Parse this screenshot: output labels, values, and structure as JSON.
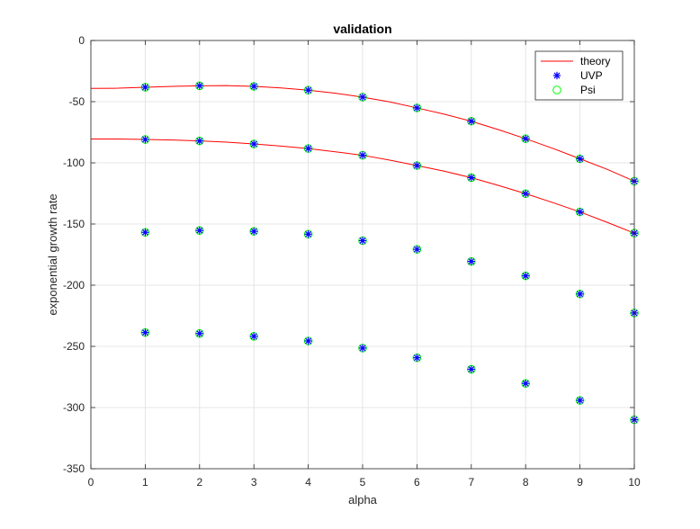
{
  "chart_data": {
    "type": "line",
    "title": "validation",
    "xlabel": "alpha",
    "ylabel": "exponential growth rate",
    "xlim": [
      0,
      10
    ],
    "ylim": [
      -350,
      0
    ],
    "xticks": [
      0,
      1,
      2,
      3,
      4,
      5,
      6,
      7,
      8,
      9,
      10
    ],
    "yticks": [
      0,
      -50,
      -100,
      -150,
      -200,
      -250,
      -300,
      -350
    ],
    "grid": true,
    "legend_position": "top-right",
    "legend": [
      {
        "name": "theory",
        "style": "line",
        "color": "#ff0000"
      },
      {
        "name": "UVP",
        "style": "asterisk",
        "color": "#0000ff"
      },
      {
        "name": "Psi",
        "style": "circle",
        "color": "#00ff00"
      }
    ],
    "series": [
      {
        "name": "theory",
        "color": "#ff0000",
        "style": "line",
        "curves": [
          {
            "x": [
              0,
              0.5,
              1,
              1.5,
              2,
              2.5,
              3,
              3.5,
              4,
              4.5,
              5,
              5.5,
              6,
              6.5,
              7,
              7.5,
              8,
              8.5,
              9,
              9.5,
              10
            ],
            "y": [
              -39.2,
              -39.0,
              -38.2,
              -37.5,
              -37.0,
              -36.9,
              -37.5,
              -38.8,
              -40.6,
              -43.1,
              -46.3,
              -50.2,
              -55.1,
              -60.2,
              -66.0,
              -72.9,
              -80.3,
              -88.2,
              -96.7,
              -105.3,
              -115.0
            ]
          },
          {
            "x": [
              0,
              0.5,
              1,
              1.5,
              2,
              2.5,
              3,
              3.5,
              4,
              4.5,
              5,
              5.5,
              6,
              6.5,
              7,
              7.5,
              8,
              8.5,
              9,
              9.5,
              10
            ],
            "y": [
              -80.5,
              -80.5,
              -80.9,
              -81.3,
              -82.1,
              -83.1,
              -84.6,
              -86.3,
              -88.3,
              -91.0,
              -93.8,
              -97.8,
              -102.2,
              -106.8,
              -112.1,
              -118.5,
              -125.2,
              -132.5,
              -140.1,
              -148.6,
              -157.5
            ]
          }
        ]
      },
      {
        "name": "UVP",
        "color": "#0000ff",
        "style": "asterisk",
        "x": [
          1,
          2,
          3,
          4,
          5,
          6,
          7,
          8,
          9,
          10
        ],
        "groups": [
          [
            -38.2,
            -37.0,
            -37.5,
            -40.6,
            -46.3,
            -55.1,
            -66.0,
            -80.3,
            -96.7,
            -115.0
          ],
          [
            -80.9,
            -82.1,
            -84.6,
            -88.3,
            -93.8,
            -102.2,
            -112.1,
            -125.2,
            -140.1,
            -157.5
          ],
          [
            -156.8,
            -155.3,
            -156.0,
            -158.3,
            -163.6,
            -170.7,
            -180.6,
            -192.4,
            -207.2,
            -222.7
          ],
          [
            -238.7,
            -239.5,
            -241.8,
            -245.6,
            -251.4,
            -259.3,
            -268.7,
            -280.3,
            -294.2,
            -310.0
          ]
        ]
      },
      {
        "name": "Psi",
        "color": "#00ff00",
        "style": "circle",
        "x": [
          1,
          2,
          3,
          4,
          5,
          6,
          7,
          8,
          9,
          10
        ],
        "groups": [
          [
            -38.2,
            -37.0,
            -37.5,
            -40.6,
            -46.3,
            -55.1,
            -66.0,
            -80.3,
            -96.7,
            -115.0
          ],
          [
            -80.9,
            -82.1,
            -84.6,
            -88.3,
            -93.8,
            -102.2,
            -112.1,
            -125.2,
            -140.1,
            -157.5
          ],
          [
            -156.8,
            -155.3,
            -156.0,
            -158.3,
            -163.6,
            -170.7,
            -180.6,
            -192.4,
            -207.2,
            -222.7
          ],
          [
            -238.7,
            -239.5,
            -241.8,
            -245.6,
            -251.4,
            -259.3,
            -268.7,
            -280.3,
            -294.2,
            -310.0
          ]
        ]
      }
    ]
  }
}
